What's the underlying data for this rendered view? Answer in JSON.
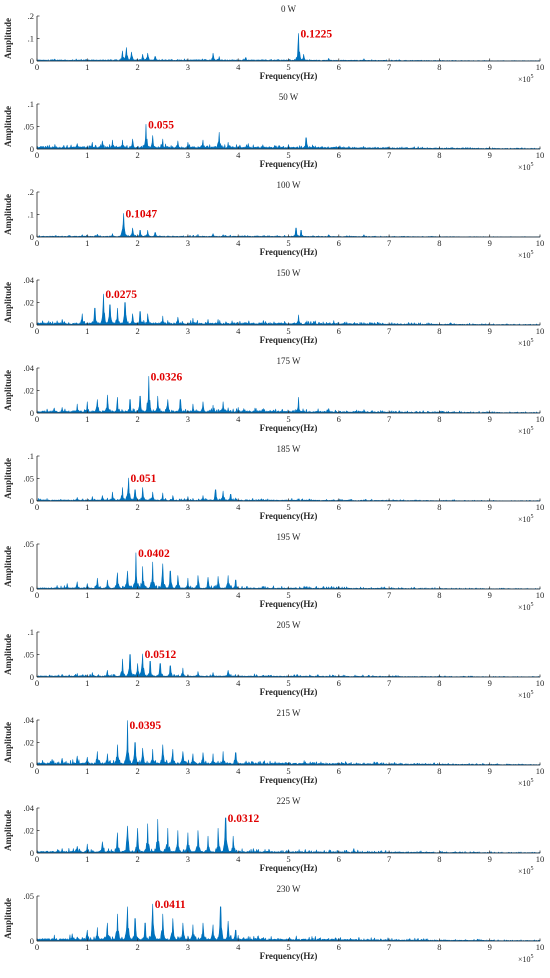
{
  "chart_data": [
    {
      "type": "area",
      "title": "0 W",
      "xlabel": "Frequency(Hz)",
      "ylabel": "Amplitude",
      "x_exponent": "×10^5",
      "xlim": [
        0,
        10
      ],
      "xticks": [
        0,
        1,
        2,
        3,
        4,
        5,
        6,
        7,
        8,
        9,
        10
      ],
      "ylim": [
        0,
        0.2
      ],
      "yticks": [
        0,
        0.1,
        0.2
      ],
      "color": "#0072BD",
      "base": 0.004,
      "noise": 0.003,
      "peaks": [
        [
          1.7,
          0.045
        ],
        [
          1.78,
          0.06
        ],
        [
          1.88,
          0.04
        ],
        [
          2.1,
          0.03
        ],
        [
          2.2,
          0.035
        ],
        [
          2.35,
          0.02
        ],
        [
          3.5,
          0.035
        ],
        [
          3.62,
          0.02
        ],
        [
          4.15,
          0.015
        ],
        [
          5.2,
          0.1225
        ],
        [
          5.3,
          0.03
        ],
        [
          5.8,
          0.012
        ],
        [
          6.5,
          0.01
        ],
        [
          7.2,
          0.006
        ]
      ],
      "annotation": {
        "text": "0.1225",
        "x": 5.2,
        "y": 0.1225
      }
    },
    {
      "type": "area",
      "title": "50 W",
      "xlabel": "Frequency(Hz)",
      "ylabel": "Amplitude",
      "x_exponent": "×10^5",
      "xlim": [
        0,
        10
      ],
      "xticks": [
        0,
        1,
        2,
        3,
        4,
        5,
        6,
        7,
        8,
        9,
        10
      ],
      "ylim": [
        0,
        0.1
      ],
      "yticks": [
        0,
        0.05,
        0.1
      ],
      "color": "#0072BD",
      "base": 0.004,
      "noise": 0.004,
      "peaks": [
        [
          0.8,
          0.012
        ],
        [
          1.1,
          0.015
        ],
        [
          1.3,
          0.018
        ],
        [
          1.5,
          0.02
        ],
        [
          1.7,
          0.02
        ],
        [
          1.9,
          0.022
        ],
        [
          2.17,
          0.055
        ],
        [
          2.3,
          0.03
        ],
        [
          2.5,
          0.022
        ],
        [
          2.8,
          0.018
        ],
        [
          3.0,
          0.015
        ],
        [
          3.3,
          0.02
        ],
        [
          3.62,
          0.037
        ],
        [
          3.8,
          0.015
        ],
        [
          4.2,
          0.012
        ],
        [
          5.0,
          0.01
        ],
        [
          5.35,
          0.025
        ],
        [
          6.2,
          0.006
        ],
        [
          7.5,
          0.005
        ]
      ],
      "annotation": {
        "text": "0.055",
        "x": 2.17,
        "y": 0.055
      }
    },
    {
      "type": "area",
      "title": "100 W",
      "xlabel": "Frequency(Hz)",
      "ylabel": "Amplitude",
      "x_exponent": "×10^5",
      "xlim": [
        0,
        10
      ],
      "xticks": [
        0,
        1,
        2,
        3,
        4,
        5,
        6,
        7,
        8,
        9,
        10
      ],
      "ylim": [
        0,
        0.2
      ],
      "yticks": [
        0,
        0.1,
        0.2
      ],
      "color": "#0072BD",
      "base": 0.003,
      "noise": 0.003,
      "peaks": [
        [
          0.9,
          0.01
        ],
        [
          1.2,
          0.012
        ],
        [
          1.5,
          0.015
        ],
        [
          1.72,
          0.1047
        ],
        [
          1.9,
          0.04
        ],
        [
          2.05,
          0.03
        ],
        [
          2.2,
          0.03
        ],
        [
          2.35,
          0.02
        ],
        [
          3.2,
          0.012
        ],
        [
          3.5,
          0.015
        ],
        [
          3.7,
          0.01
        ],
        [
          4.5,
          0.006
        ],
        [
          5.15,
          0.04
        ],
        [
          5.25,
          0.03
        ],
        [
          5.8,
          0.01
        ],
        [
          6.5,
          0.01
        ]
      ],
      "annotation": {
        "text": "0.1047",
        "x": 1.72,
        "y": 0.1047
      }
    },
    {
      "type": "area",
      "title": "150 W",
      "xlabel": "Frequency(Hz)",
      "ylabel": "Amplitude",
      "x_exponent": "×10^5",
      "xlim": [
        0,
        10
      ],
      "xticks": [
        0,
        1,
        2,
        3,
        4,
        5,
        6,
        7,
        8,
        9,
        10
      ],
      "ylim": [
        0,
        0.04
      ],
      "yticks": [
        0,
        0.02,
        0.04
      ],
      "color": "#0072BD",
      "base": 0.0015,
      "noise": 0.002,
      "peaks": [
        [
          0.5,
          0.005
        ],
        [
          0.9,
          0.01
        ],
        [
          1.15,
          0.015
        ],
        [
          1.32,
          0.0275
        ],
        [
          1.45,
          0.018
        ],
        [
          1.6,
          0.015
        ],
        [
          1.75,
          0.02
        ],
        [
          1.9,
          0.01
        ],
        [
          2.05,
          0.012
        ],
        [
          2.2,
          0.01
        ],
        [
          2.5,
          0.008
        ],
        [
          2.8,
          0.007
        ],
        [
          3.1,
          0.006
        ],
        [
          3.4,
          0.005
        ],
        [
          3.6,
          0.005
        ],
        [
          4.5,
          0.004
        ],
        [
          5.2,
          0.009
        ],
        [
          5.9,
          0.004
        ],
        [
          7.5,
          0.002
        ]
      ],
      "annotation": {
        "text": "0.0275",
        "x": 1.32,
        "y": 0.0275
      }
    },
    {
      "type": "area",
      "title": "175 W",
      "xlabel": "Frequency(Hz)",
      "ylabel": "Amplitude",
      "x_exponent": "×10^5",
      "xlim": [
        0,
        10
      ],
      "xticks": [
        0,
        1,
        2,
        3,
        4,
        5,
        6,
        7,
        8,
        9,
        10
      ],
      "ylim": [
        0,
        0.04
      ],
      "yticks": [
        0,
        0.02,
        0.04
      ],
      "color": "#0072BD",
      "base": 0.0015,
      "noise": 0.002,
      "peaks": [
        [
          0.5,
          0.005
        ],
        [
          0.8,
          0.008
        ],
        [
          1.0,
          0.01
        ],
        [
          1.2,
          0.012
        ],
        [
          1.4,
          0.016
        ],
        [
          1.6,
          0.014
        ],
        [
          1.85,
          0.012
        ],
        [
          2.05,
          0.015
        ],
        [
          2.22,
          0.0326
        ],
        [
          2.4,
          0.015
        ],
        [
          2.6,
          0.012
        ],
        [
          2.85,
          0.012
        ],
        [
          3.1,
          0.008
        ],
        [
          3.3,
          0.01
        ],
        [
          3.5,
          0.007
        ],
        [
          3.7,
          0.01
        ],
        [
          4.0,
          0.005
        ],
        [
          4.5,
          0.004
        ],
        [
          5.2,
          0.014
        ],
        [
          5.8,
          0.004
        ],
        [
          6.5,
          0.003
        ],
        [
          7.2,
          0.002
        ]
      ],
      "annotation": {
        "text": "0.0326",
        "x": 2.22,
        "y": 0.0326
      }
    },
    {
      "type": "area",
      "title": "185 W",
      "xlabel": "Frequency(Hz)",
      "ylabel": "Amplitude",
      "x_exponent": "×10^5",
      "xlim": [
        0,
        10
      ],
      "xticks": [
        0,
        1,
        2,
        3,
        4,
        5,
        6,
        7,
        8,
        9,
        10
      ],
      "ylim": [
        0,
        0.1
      ],
      "yticks": [
        0,
        0.05,
        0.1
      ],
      "color": "#0072BD",
      "base": 0.002,
      "noise": 0.003,
      "peaks": [
        [
          0.8,
          0.008
        ],
        [
          1.1,
          0.01
        ],
        [
          1.3,
          0.012
        ],
        [
          1.5,
          0.02
        ],
        [
          1.7,
          0.03
        ],
        [
          1.82,
          0.051
        ],
        [
          1.95,
          0.025
        ],
        [
          2.1,
          0.03
        ],
        [
          2.3,
          0.02
        ],
        [
          2.5,
          0.018
        ],
        [
          2.7,
          0.012
        ],
        [
          3.0,
          0.01
        ],
        [
          3.3,
          0.012
        ],
        [
          3.55,
          0.025
        ],
        [
          3.7,
          0.022
        ],
        [
          3.85,
          0.015
        ],
        [
          4.5,
          0.004
        ],
        [
          5.2,
          0.004
        ],
        [
          6.5,
          0.003
        ]
      ],
      "annotation": {
        "text": "0.051",
        "x": 1.82,
        "y": 0.051
      }
    },
    {
      "type": "area",
      "title": "195 W",
      "xlabel": "Frequency(Hz)",
      "ylabel": "Amplitude",
      "x_exponent": "×10^5",
      "xlim": [
        0,
        10
      ],
      "xticks": [
        0,
        1,
        2,
        3,
        4,
        5,
        6,
        7,
        8,
        9,
        10
      ],
      "ylim": [
        0,
        0.05
      ],
      "yticks": [
        0,
        0.05
      ],
      "color": "#0072BD",
      "base": 0.001,
      "noise": 0.002,
      "peaks": [
        [
          0.4,
          0.004
        ],
        [
          0.6,
          0.006
        ],
        [
          0.8,
          0.008
        ],
        [
          1.0,
          0.006
        ],
        [
          1.2,
          0.012
        ],
        [
          1.4,
          0.01
        ],
        [
          1.6,
          0.018
        ],
        [
          1.8,
          0.02
        ],
        [
          1.97,
          0.0402
        ],
        [
          2.1,
          0.025
        ],
        [
          2.3,
          0.03
        ],
        [
          2.5,
          0.028
        ],
        [
          2.65,
          0.02
        ],
        [
          2.8,
          0.015
        ],
        [
          3.0,
          0.012
        ],
        [
          3.2,
          0.015
        ],
        [
          3.4,
          0.013
        ],
        [
          3.6,
          0.014
        ],
        [
          3.8,
          0.015
        ],
        [
          3.95,
          0.01
        ],
        [
          4.5,
          0.003
        ],
        [
          6.0,
          0.003
        ],
        [
          7.5,
          0.002
        ]
      ],
      "annotation": {
        "text": "0.0402",
        "x": 1.97,
        "y": 0.0402
      }
    },
    {
      "type": "area",
      "title": "205 W",
      "xlabel": "Frequency(Hz)",
      "ylabel": "Amplitude",
      "x_exponent": "×10^5",
      "xlim": [
        0,
        10
      ],
      "xticks": [
        0,
        1,
        2,
        3,
        4,
        5,
        6,
        7,
        8,
        9,
        10
      ],
      "ylim": [
        0,
        0.1
      ],
      "yticks": [
        0,
        0.05,
        0.1
      ],
      "color": "#0072BD",
      "base": 0.002,
      "noise": 0.003,
      "peaks": [
        [
          0.5,
          0.006
        ],
        [
          0.8,
          0.008
        ],
        [
          1.1,
          0.01
        ],
        [
          1.4,
          0.015
        ],
        [
          1.7,
          0.04
        ],
        [
          1.85,
          0.05
        ],
        [
          2.0,
          0.03
        ],
        [
          2.1,
          0.0512
        ],
        [
          2.25,
          0.035
        ],
        [
          2.45,
          0.03
        ],
        [
          2.65,
          0.025
        ],
        [
          2.9,
          0.02
        ],
        [
          3.2,
          0.012
        ],
        [
          3.5,
          0.01
        ],
        [
          3.8,
          0.015
        ],
        [
          4.5,
          0.004
        ],
        [
          6.0,
          0.003
        ]
      ],
      "annotation": {
        "text": "0.0512",
        "x": 2.1,
        "y": 0.0512
      }
    },
    {
      "type": "area",
      "title": "215 W",
      "xlabel": "Frequency(Hz)",
      "ylabel": "Amplitude",
      "x_exponent": "×10^5",
      "xlim": [
        0,
        10
      ],
      "xticks": [
        0,
        1,
        2,
        3,
        4,
        5,
        6,
        7,
        8,
        9,
        10
      ],
      "ylim": [
        0,
        0.04
      ],
      "yticks": [
        0,
        0.02,
        0.04
      ],
      "color": "#0072BD",
      "base": 0.0015,
      "noise": 0.002,
      "peaks": [
        [
          0.3,
          0.005
        ],
        [
          0.5,
          0.006
        ],
        [
          0.8,
          0.008
        ],
        [
          1.0,
          0.007
        ],
        [
          1.2,
          0.012
        ],
        [
          1.4,
          0.01
        ],
        [
          1.6,
          0.018
        ],
        [
          1.8,
          0.0395
        ],
        [
          1.95,
          0.02
        ],
        [
          2.1,
          0.015
        ],
        [
          2.3,
          0.014
        ],
        [
          2.5,
          0.018
        ],
        [
          2.7,
          0.014
        ],
        [
          2.9,
          0.012
        ],
        [
          3.1,
          0.01
        ],
        [
          3.3,
          0.011
        ],
        [
          3.5,
          0.01
        ],
        [
          3.7,
          0.012
        ],
        [
          3.95,
          0.011
        ],
        [
          4.5,
          0.003
        ],
        [
          5.5,
          0.002
        ],
        [
          6.5,
          0.002
        ]
      ],
      "annotation": {
        "text": "0.0395",
        "x": 1.8,
        "y": 0.0395
      }
    },
    {
      "type": "area",
      "title": "225 W",
      "xlabel": "Frequency(Hz)",
      "ylabel": "Amplitude",
      "x_exponent": "×10^5",
      "xlim": [
        0,
        10
      ],
      "xticks": [
        0,
        1,
        2,
        3,
        4,
        5,
        6,
        7,
        8,
        9,
        10
      ],
      "ylim": [
        0,
        0.04
      ],
      "yticks": [
        0,
        0.02,
        0.04
      ],
      "color": "#0072BD",
      "base": 0.0012,
      "noise": 0.002,
      "peaks": [
        [
          0.5,
          0.004
        ],
        [
          0.8,
          0.006
        ],
        [
          1.0,
          0.008
        ],
        [
          1.3,
          0.01
        ],
        [
          1.6,
          0.018
        ],
        [
          1.8,
          0.024
        ],
        [
          2.0,
          0.022
        ],
        [
          2.2,
          0.026
        ],
        [
          2.4,
          0.03
        ],
        [
          2.6,
          0.022
        ],
        [
          2.8,
          0.02
        ],
        [
          3.0,
          0.018
        ],
        [
          3.2,
          0.02
        ],
        [
          3.4,
          0.015
        ],
        [
          3.6,
          0.022
        ],
        [
          3.75,
          0.0312
        ],
        [
          3.9,
          0.015
        ],
        [
          4.3,
          0.004
        ],
        [
          5.0,
          0.003
        ],
        [
          6.3,
          0.004
        ]
      ],
      "annotation": {
        "text": "0.0312",
        "x": 3.75,
        "y": 0.0312
      }
    },
    {
      "type": "area",
      "title": "230 W",
      "xlabel": "Frequency(Hz)",
      "ylabel": "Amplitude",
      "x_exponent": "×10^5",
      "xlim": [
        0,
        10
      ],
      "xticks": [
        0,
        1,
        2,
        3,
        4,
        5,
        6,
        7,
        8,
        9,
        10
      ],
      "ylim": [
        0,
        0.05
      ],
      "yticks": [
        0,
        0.05
      ],
      "color": "#0072BD",
      "base": 0.002,
      "noise": 0.003,
      "peaks": [
        [
          0.7,
          0.008
        ],
        [
          1.0,
          0.012
        ],
        [
          1.2,
          0.015
        ],
        [
          1.4,
          0.02
        ],
        [
          1.6,
          0.03
        ],
        [
          1.8,
          0.038
        ],
        [
          1.95,
          0.025
        ],
        [
          2.15,
          0.02
        ],
        [
          2.3,
          0.0411
        ],
        [
          2.5,
          0.03
        ],
        [
          2.7,
          0.025
        ],
        [
          2.9,
          0.02
        ],
        [
          3.1,
          0.018
        ],
        [
          3.3,
          0.02
        ],
        [
          3.5,
          0.018
        ],
        [
          3.65,
          0.038
        ],
        [
          3.8,
          0.022
        ],
        [
          3.95,
          0.012
        ],
        [
          4.5,
          0.004
        ],
        [
          6.0,
          0.003
        ]
      ],
      "annotation": {
        "text": "0.0411",
        "x": 2.3,
        "y": 0.0411
      }
    }
  ]
}
